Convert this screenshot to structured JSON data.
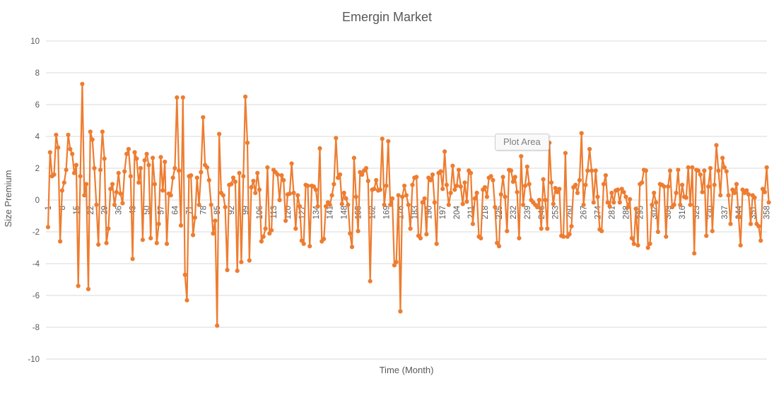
{
  "chart": {
    "title": "Emergin Market",
    "x_axis_title": "Time (Month)",
    "y_axis_title": "Size Premium",
    "tooltip_label": "Plot Area",
    "colors": {
      "series": "#ED7D31",
      "gridline": "#D9D9D9",
      "text": "#595959",
      "background": "#FFFFFF"
    }
  },
  "chart_data": {
    "type": "line",
    "title": "Emergin Market",
    "xlabel": "Time (Month)",
    "ylabel": "Size Premium",
    "ylim": [
      -10,
      10
    ],
    "y_tick_step": 2,
    "x_start": 1,
    "x_step": 1,
    "x_tick_labels": [
      1,
      8,
      15,
      22,
      29,
      36,
      43,
      50,
      57,
      64,
      71,
      78,
      85,
      92,
      99,
      106,
      113,
      120,
      127,
      134,
      141,
      148,
      155,
      162,
      169,
      176,
      183,
      190,
      197,
      204,
      211,
      218,
      225,
      232,
      239,
      246,
      253,
      260,
      267,
      274,
      281,
      288,
      295,
      302,
      309,
      316,
      323,
      330,
      337,
      344,
      351,
      358
    ],
    "grid": true,
    "legend": false,
    "marker": "circle",
    "series": [
      {
        "name": "Size Premium",
        "color": "#ED7D31",
        "values": [
          -1.7,
          3.0,
          1.5,
          1.6,
          4.1,
          3.3,
          -2.6,
          0.6,
          1.1,
          1.9,
          4.1,
          3.2,
          2.9,
          1.7,
          2.2,
          -5.4,
          1.5,
          7.3,
          0.3,
          1.0,
          -5.6,
          4.3,
          3.8,
          2.0,
          -0.3,
          -2.8,
          1.9,
          4.3,
          2.6,
          -2.7,
          -1.8,
          0.7,
          1.0,
          -0.3,
          0.5,
          1.7,
          0.4,
          -0.2,
          1.8,
          2.9,
          3.2,
          1.5,
          -3.7,
          3.0,
          2.6,
          1.1,
          2.0,
          -2.5,
          2.5,
          2.9,
          2.2,
          -2.4,
          2.65,
          1.0,
          -2.7,
          -1.5,
          2.7,
          0.6,
          2.4,
          -2.75,
          0.4,
          0.3,
          1.4,
          2.0,
          6.45,
          1.85,
          -1.6,
          6.45,
          -4.7,
          -6.3,
          1.5,
          1.55,
          -2.2,
          -1.1,
          1.4,
          -0.3,
          1.75,
          5.2,
          2.2,
          2.05,
          1.25,
          -0.3,
          -2.1,
          -1.3,
          -7.9,
          4.15,
          0.45,
          0.3,
          -0.45,
          -4.4,
          0.95,
          1.0,
          1.4,
          1.15,
          -4.45,
          1.7,
          -3.9,
          1.5,
          6.5,
          3.6,
          -3.8,
          0.8,
          1.2,
          0.45,
          1.7,
          0.65,
          -2.6,
          -2.3,
          -1.8,
          2.05,
          -2.1,
          -1.9,
          1.9,
          1.75,
          1.6,
          0.0,
          1.55,
          1.25,
          -1.3,
          0.35,
          0.4,
          2.3,
          0.45,
          -1.8,
          0.3,
          -0.4,
          -2.55,
          -2.75,
          0.95,
          0.9,
          -2.9,
          0.9,
          0.85,
          0.65,
          -0.4,
          3.25,
          -2.6,
          -2.45,
          -0.4,
          -0.15,
          -0.3,
          0.3,
          1.0,
          3.9,
          1.4,
          1.6,
          -0.25,
          0.45,
          0.1,
          -0.3,
          -2.1,
          -2.95,
          2.65,
          0.2,
          -1.95,
          1.75,
          1.6,
          1.85,
          2.0,
          1.2,
          -5.1,
          0.65,
          0.7,
          1.25,
          0.6,
          0.65,
          3.85,
          -0.3,
          0.9,
          3.7,
          -0.3,
          0.1,
          -4.1,
          -3.9,
          0.3,
          -7.0,
          0.2,
          0.9,
          0.3,
          -0.3,
          -1.8,
          0.95,
          1.4,
          1.45,
          -2.25,
          -2.4,
          -0.15,
          0.1,
          -2.15,
          1.4,
          1.25,
          1.6,
          -0.15,
          -2.75,
          1.7,
          1.8,
          0.7,
          3.05,
          0.95,
          -0.3,
          0.45,
          2.15,
          0.65,
          0.9,
          1.9,
          0.85,
          -0.25,
          1.1,
          -0.1,
          1.85,
          1.7,
          -1.5,
          0.1,
          0.45,
          -2.3,
          -2.4,
          0.65,
          0.8,
          0.2,
          1.4,
          1.5,
          1.25,
          -0.45,
          -2.7,
          -2.9,
          0.35,
          1.45,
          0.2,
          -1.95,
          1.9,
          1.85,
          1.15,
          1.45,
          0.5,
          -2.4,
          2.75,
          -0.3,
          0.9,
          2.1,
          1.0,
          0.0,
          -0.15,
          -0.3,
          -0.45,
          0.0,
          -1.8,
          1.3,
          0.0,
          -1.8,
          3.6,
          1.1,
          -0.25,
          0.75,
          0.5,
          0.7,
          -2.25,
          -2.3,
          2.95,
          -2.3,
          -2.15,
          -1.65,
          0.8,
          0.95,
          0.45,
          1.25,
          4.2,
          -0.3,
          0.95,
          1.85,
          3.2,
          1.85,
          -0.15,
          1.85,
          0.2,
          -1.85,
          -1.95,
          1.0,
          1.55,
          -0.15,
          -0.4,
          0.45,
          -0.15,
          0.6,
          0.65,
          -0.15,
          0.7,
          0.5,
          0.2,
          -0.45,
          0.05,
          -2.4,
          -2.75,
          -0.55,
          -2.85,
          1.0,
          1.1,
          1.9,
          1.85,
          -3.0,
          -2.75,
          -0.3,
          0.45,
          -0.15,
          -2.0,
          1.0,
          0.95,
          0.85,
          -2.3,
          0.85,
          1.85,
          -0.45,
          -0.3,
          0.45,
          1.9,
          -0.3,
          0.95,
          0.2,
          0.15,
          2.05,
          -0.3,
          2.05,
          -3.35,
          1.9,
          1.85,
          1.6,
          0.5,
          1.85,
          -2.25,
          0.85,
          2.0,
          -1.95,
          0.95,
          3.45,
          1.85,
          0.3,
          2.65,
          2.05,
          1.8,
          0.3,
          -1.5,
          0.65,
          0.45,
          1.0,
          -1.05,
          -2.85,
          0.65,
          0.45,
          0.6,
          0.35,
          -1.5,
          0.3,
          0.15,
          -1.5,
          -1.65,
          -2.55,
          0.7,
          0.5,
          2.05,
          -0.15
        ]
      }
    ]
  }
}
